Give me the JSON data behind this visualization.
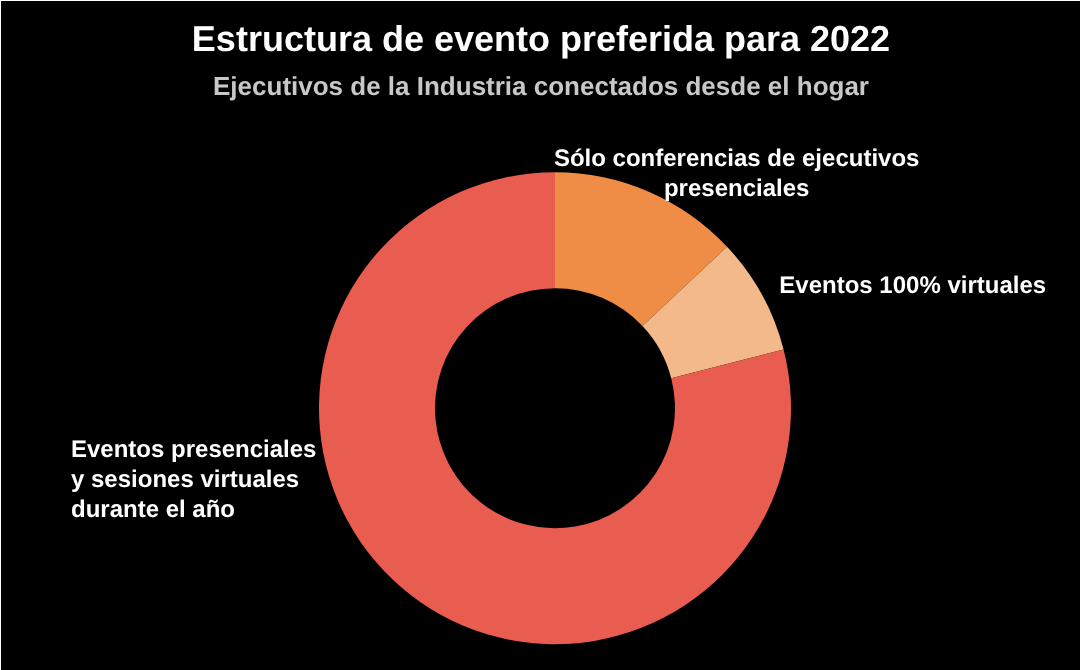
{
  "chart_data": {
    "type": "donut",
    "title": "Estructura de evento preferida para 2022",
    "subtitle": "Ejecutivos de la Industria conectados desde el hogar",
    "categories": [
      "Sólo conferencias de ejecutivos presenciales",
      "Eventos 100% virtuales",
      "Eventos presenciales y sesiones virtuales durante el año"
    ],
    "values": [
      13,
      8,
      79
    ],
    "colors": [
      "#ef8c45",
      "#f3b98a",
      "#e85d50"
    ]
  }
}
